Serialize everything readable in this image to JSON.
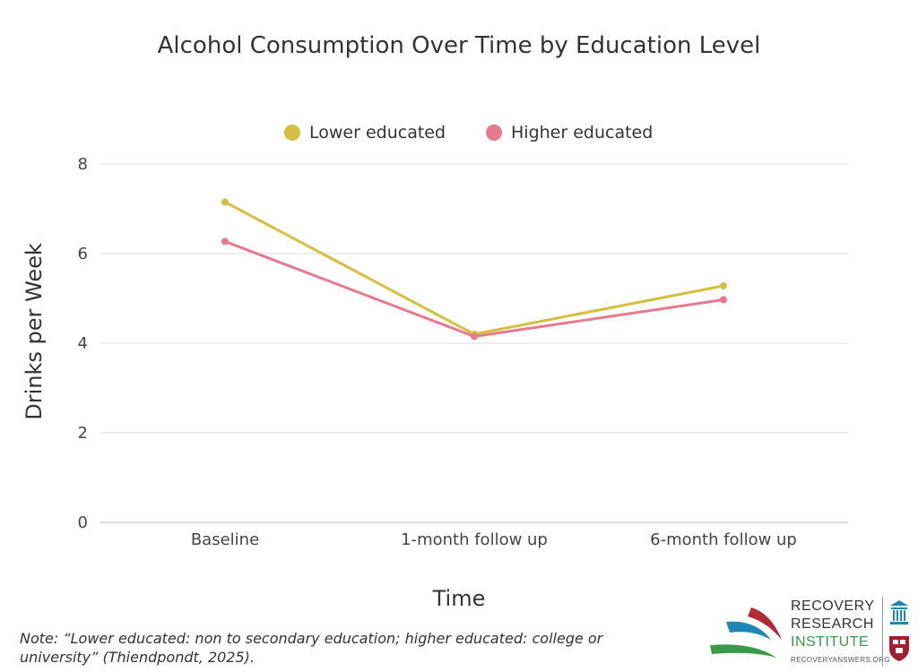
{
  "chart_data": {
    "type": "line",
    "title": "Alcohol Consumption Over Time by Education Level",
    "xlabel": "Time",
    "ylabel": "Drinks per Week",
    "categories": [
      "Baseline",
      "1-month follow up",
      "6-month follow up"
    ],
    "ylim": [
      0,
      8
    ],
    "yticks": [
      "0",
      "2",
      "4",
      "6",
      "8"
    ],
    "grid": true,
    "legend_position": "top-center",
    "series": [
      {
        "name": "Lower educated",
        "values": [
          7.15,
          4.2,
          5.28
        ],
        "color": "#d4bf3f"
      },
      {
        "name": "Higher educated",
        "values": [
          6.27,
          4.15,
          4.97
        ],
        "color": "#e8788d"
      }
    ]
  },
  "note": "Note: “Lower educated: non to secondary education; higher educated: college or university” (Thiendpondt, 2025).",
  "logo": {
    "line1": "RECOVERY",
    "line2": "RESEARCH",
    "line3": "INSTITUTE",
    "url": "RECOVERYANSWERS.ORG",
    "colors": {
      "red": "#b22a3a",
      "blue": "#1f86b5",
      "green": "#3a9a48"
    }
  }
}
